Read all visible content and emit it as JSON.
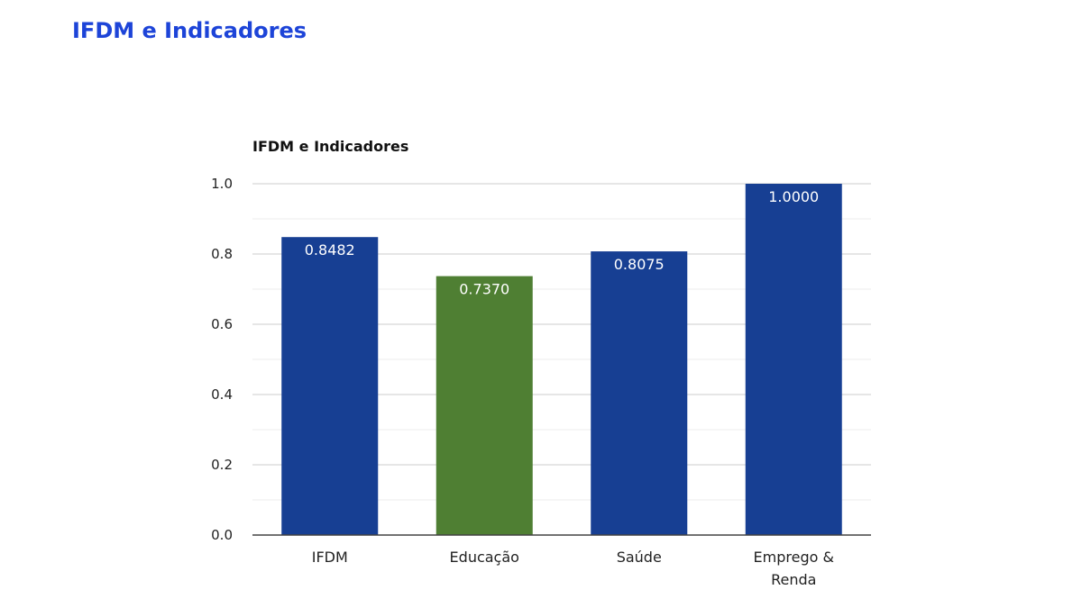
{
  "page": {
    "title": "IFDM e Indicadores"
  },
  "chart_data": {
    "type": "bar",
    "title": "IFDM e Indicadores",
    "xlabel": "",
    "ylabel": "",
    "categories": [
      [
        "IFDM"
      ],
      [
        "Educação"
      ],
      [
        "Saúde"
      ],
      [
        "Emprego &",
        "Renda"
      ]
    ],
    "values": [
      0.8482,
      0.737,
      0.8075,
      1.0
    ],
    "data_labels": [
      "0.8482",
      "0.7370",
      "0.8075",
      "1.0000"
    ],
    "bar_colors": [
      "#173f93",
      "#4f7f33",
      "#173f93",
      "#173f93"
    ],
    "ylim": [
      0,
      1.0
    ],
    "yticks": [
      0.0,
      0.2,
      0.4,
      0.6,
      0.8,
      1.0
    ],
    "ytick_labels": [
      "0.0",
      "0.2",
      "0.4",
      "0.6",
      "0.8",
      "1.0"
    ],
    "grid": true,
    "legend": "none"
  }
}
